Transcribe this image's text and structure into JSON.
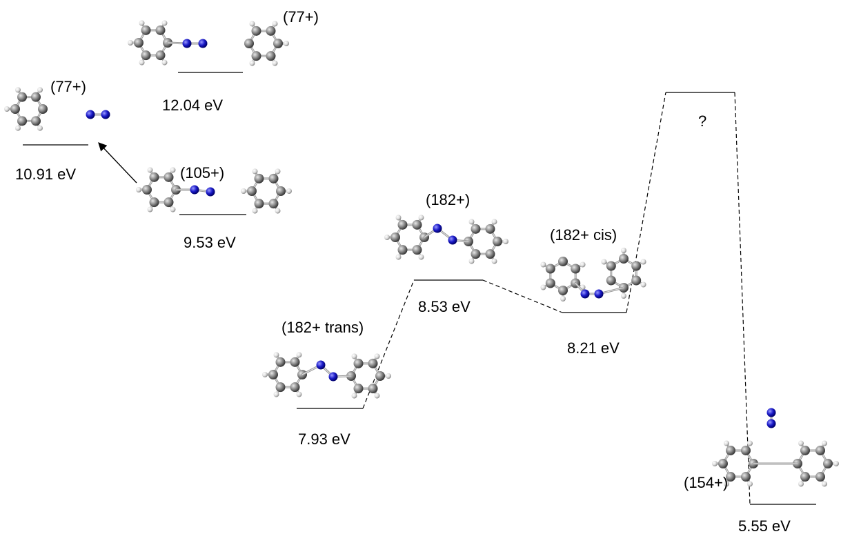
{
  "species": {
    "s77_top": {
      "ion": "(77+)",
      "energy": "12.04 eV"
    },
    "s77_left": {
      "ion": "(77+)",
      "energy": "10.91 eV"
    },
    "s105": {
      "ion": "(105+)",
      "energy": "9.53 eV"
    },
    "s182": {
      "ion": "(182+)",
      "energy": "8.53 eV"
    },
    "s182cis": {
      "ion": "(182+ cis)",
      "energy": "8.21 eV"
    },
    "s182trans": {
      "ion": "(182+ trans)",
      "energy": "7.93 eV"
    },
    "s154": {
      "ion": "(154+)",
      "energy": "5.55 eV"
    },
    "unknown": {
      "label": "?"
    }
  },
  "colors": {
    "carbon": "#7f7f7f",
    "hydrogen": "#f2f2f2",
    "nitrogen": "#1a1aa8"
  }
}
